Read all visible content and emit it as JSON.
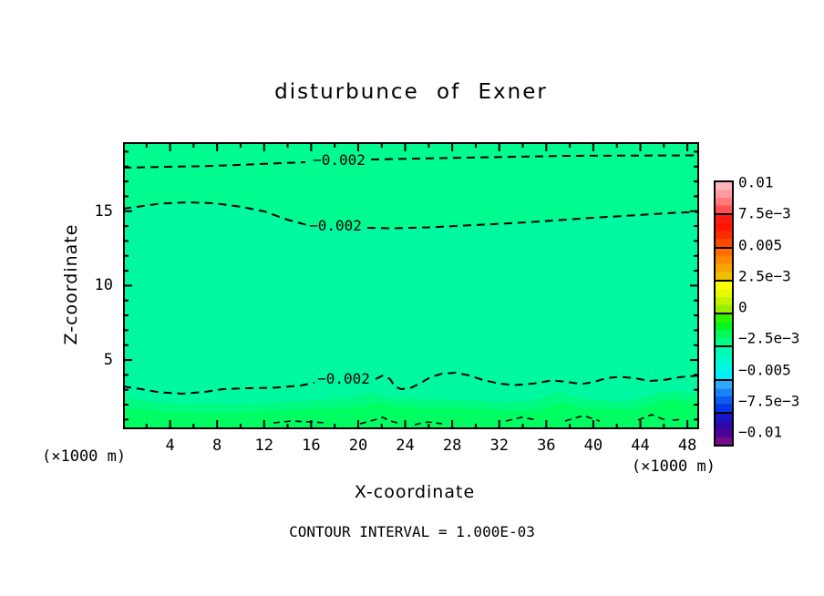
{
  "title": "disturbunce of Exner",
  "axes": {
    "x_label": "X-coordinate",
    "y_label": "Z-coordinate",
    "x_unit_left": "(×1000 m)",
    "x_unit_right": "(×1000 m)",
    "x_ticks": [
      4,
      8,
      12,
      16,
      20,
      24,
      28,
      32,
      36,
      40,
      44,
      48
    ],
    "y_ticks": [
      5,
      10,
      15
    ]
  },
  "footer": "CONTOUR INTERVAL = 1.000E-03",
  "contours": {
    "labels": [
      "−0.002",
      "−0.002",
      "−0.002"
    ]
  },
  "colors": {
    "field_base": "#00f9a0",
    "field_upper_band": "#00fb8e",
    "field_low_mid": "#00fb80",
    "field_low_bright": "#00fe62",
    "contour_line": "#000000"
  },
  "colorbar": {
    "labels": [
      "0.01",
      "7.5e−3",
      "0.005",
      "2.5e−3",
      "0",
      "−2.5e−3",
      "−0.005",
      "−7.5e−3",
      "−0.01"
    ],
    "cells": [
      [
        "#ffb4bc",
        "#ff9aa0",
        "#ff7a78",
        "#ff5152"
      ],
      [
        "#ff1b10",
        "#ff1500",
        "#fb2c00",
        "#f74a00"
      ],
      [
        "#ff6f00",
        "#ff8c00",
        "#f7a600",
        "#efbe00"
      ],
      [
        "#fdff00",
        "#e4fb00",
        "#c4f500",
        "#9aee00"
      ],
      [
        "#30f400",
        "#00f61e",
        "#00f957",
        "#00fc86"
      ],
      [
        "#00fcae",
        "#00fbc8",
        "#00f7e2",
        "#00eef6"
      ],
      [
        "#2fa8fa",
        "#1b82f6",
        "#0c5cf0",
        "#0338e8"
      ],
      [
        "#1b14c6",
        "#2e08a8",
        "#4c0496",
        "#750c8a"
      ]
    ]
  },
  "chart_data": {
    "type": "contour",
    "title": "disturbunce of Exner",
    "xlabel": "X-coordinate",
    "ylabel": "Z-coordinate",
    "x_units": "×1000 m",
    "y_units": "×1000 m",
    "x_range": [
      0,
      49
    ],
    "y_range": [
      0,
      19.6
    ],
    "contour_interval": 0.001,
    "labeled_contour_level": -0.002,
    "colorbar_levels": [
      -0.01,
      -0.0075,
      -0.005,
      -0.0025,
      0,
      0.0025,
      0.005,
      0.0075,
      0.01
    ],
    "contour_lines": [
      {
        "level": -0.002,
        "points_x": [
          0,
          8,
          16,
          21,
          27,
          38,
          49
        ],
        "points_z": [
          17.9,
          18.1,
          18.3,
          18.5,
          18.6,
          18.7,
          18.75
        ]
      },
      {
        "level": -0.002,
        "points_x": [
          0,
          3,
          5.5,
          7.8,
          10,
          12.4,
          14,
          15.7,
          21,
          23,
          30,
          33,
          36,
          41,
          44,
          47,
          49
        ],
        "points_z": [
          15.2,
          15.3,
          15.5,
          15.6,
          15.5,
          15.3,
          15.0,
          14.4,
          14.1,
          13.85,
          14.05,
          14.2,
          14.35,
          14.6,
          14.75,
          14.9,
          14.95
        ]
      },
      {
        "level": -0.002,
        "points_x": [
          0,
          3,
          5,
          7,
          10.5,
          15,
          16.3,
          21.5,
          22.7,
          23.1,
          24.5,
          26,
          28,
          29.7,
          31.7,
          33.3,
          35,
          37,
          39.5,
          41,
          43,
          45,
          47.3,
          49
        ],
        "points_z": [
          3.2,
          2.85,
          2.75,
          2.85,
          3.1,
          3.3,
          3.5,
          3.7,
          3.95,
          3.25,
          3.45,
          3.85,
          4.1,
          3.95,
          3.4,
          3.3,
          3.45,
          3.55,
          3.45,
          3.75,
          3.6,
          3.5,
          3.7,
          3.95
        ]
      }
    ],
    "field_note": "Shaded field mostly between -0.003 and -0.001 (spring green); band between upper two -0.002 contours slightly greener; near-surface layer brightens toward 0."
  }
}
